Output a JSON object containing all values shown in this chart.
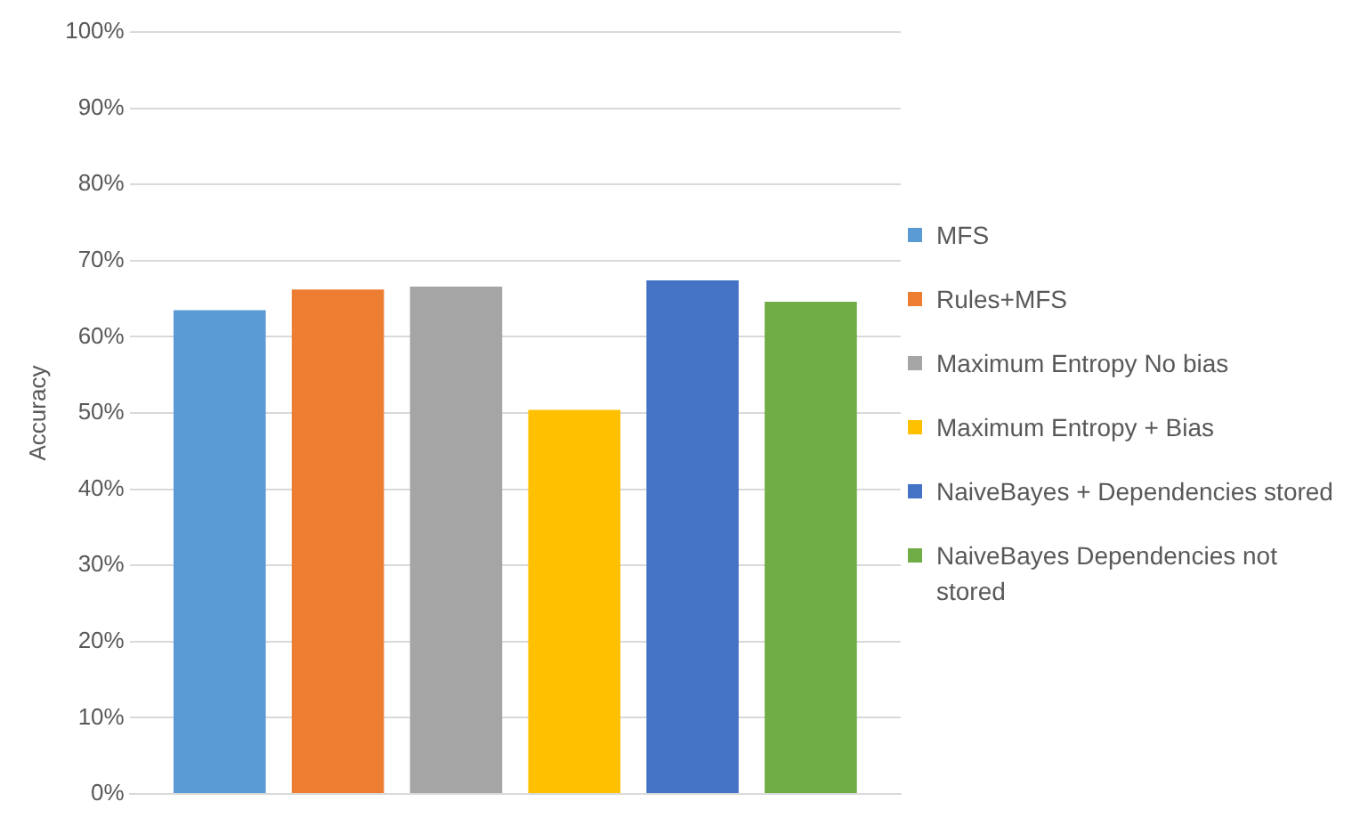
{
  "chart_data": {
    "type": "bar",
    "ylabel": "Accuracy",
    "categories": [
      null
    ],
    "series": [
      {
        "name": "MFS",
        "color": "#5b9bd5",
        "values": [
          63.5
        ]
      },
      {
        "name": "Rules+MFS",
        "color": "#ed7d31",
        "values": [
          66.2
        ]
      },
      {
        "name": "Maximum Entropy No bias",
        "color": "#a5a5a5",
        "values": [
          66.6
        ]
      },
      {
        "name": "Maximum Entropy + Bias",
        "color": "#ffc000",
        "values": [
          50.4
        ]
      },
      {
        "name": "NaiveBayes + Dependencies stored",
        "color": "#4472c4",
        "values": [
          67.4
        ]
      },
      {
        "name": "NaiveBayes Dependencies not stored",
        "color": "#70ad47",
        "values": [
          64.6
        ]
      }
    ],
    "ylim": [
      0,
      100
    ],
    "yticks": [
      {
        "value": 0,
        "label": "0%"
      },
      {
        "value": 10,
        "label": "10%"
      },
      {
        "value": 20,
        "label": "20%"
      },
      {
        "value": 30,
        "label": "30%"
      },
      {
        "value": 40,
        "label": "40%"
      },
      {
        "value": 50,
        "label": "50%"
      },
      {
        "value": 60,
        "label": "60%"
      },
      {
        "value": 70,
        "label": "70%"
      },
      {
        "value": 80,
        "label": "80%"
      },
      {
        "value": 90,
        "label": "90%"
      },
      {
        "value": 100,
        "label": "100%"
      }
    ],
    "grid": "y",
    "legend": "right",
    "tick_labels": "y"
  }
}
